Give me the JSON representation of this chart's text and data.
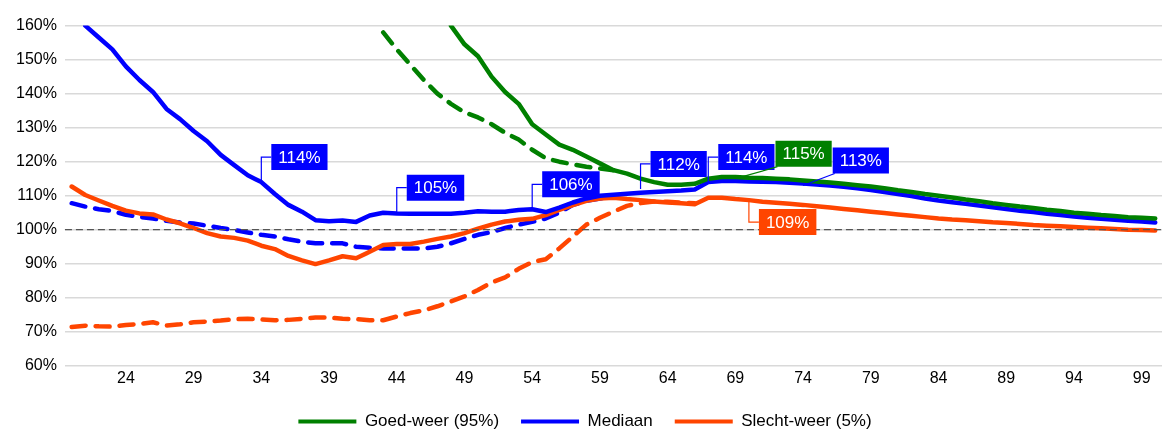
{
  "chart_data": {
    "type": "line",
    "x": [
      20,
      21,
      22,
      23,
      24,
      25,
      26,
      27,
      28,
      29,
      30,
      31,
      32,
      33,
      34,
      35,
      36,
      37,
      38,
      39,
      40,
      41,
      42,
      43,
      44,
      45,
      46,
      47,
      48,
      49,
      50,
      51,
      52,
      53,
      54,
      55,
      56,
      57,
      58,
      59,
      60,
      61,
      62,
      63,
      64,
      65,
      66,
      67,
      68,
      69,
      70,
      71,
      72,
      73,
      74,
      75,
      76,
      77,
      78,
      79,
      80,
      81,
      82,
      83,
      84,
      85,
      86,
      87,
      88,
      89,
      90,
      91,
      92,
      93,
      94,
      95,
      96,
      97,
      98,
      99,
      100
    ],
    "series": [
      {
        "name": "Goed-weer (95%)",
        "color": "#008000",
        "line_style": "solid",
        "values": [
          null,
          null,
          null,
          null,
          null,
          null,
          null,
          null,
          null,
          null,
          null,
          null,
          null,
          null,
          null,
          null,
          null,
          null,
          null,
          null,
          null,
          null,
          null,
          null,
          null,
          null,
          null,
          null,
          160,
          154.5,
          151,
          145,
          140.5,
          137,
          131,
          128,
          125,
          123.5,
          121.5,
          119.5,
          117.5,
          116.5,
          115,
          114,
          113.2,
          113.2,
          113.5,
          115,
          115.5,
          115.5,
          115.3,
          115.2,
          115,
          114.8,
          114.5,
          114.2,
          113.9,
          113.5,
          113.1,
          112.7,
          112.2,
          111.6,
          111.1,
          110.5,
          110,
          109.5,
          108.9,
          108.4,
          107.8,
          107.3,
          106.8,
          106.4,
          105.9,
          105.5,
          105,
          104.7,
          104.3,
          104,
          103.7,
          103.5,
          103.3
        ]
      },
      {
        "name": "Mediaan",
        "color": "#0000ff",
        "line_style": "solid",
        "values": [
          null,
          160,
          156.5,
          153,
          148,
          144,
          140.5,
          135.5,
          132.5,
          129,
          126,
          122,
          119,
          116,
          114,
          110.5,
          107.3,
          105.3,
          102.8,
          102.5,
          102.7,
          102.3,
          104.2,
          105,
          104.8,
          104.7,
          104.7,
          104.7,
          104.7,
          105,
          105.4,
          105.3,
          105.3,
          105.8,
          106,
          105.2,
          106.5,
          108,
          109.2,
          110,
          110.3,
          110.6,
          110.9,
          111.1,
          111.3,
          111.5,
          111.8,
          114,
          114.3,
          114.3,
          114.2,
          114.1,
          114,
          113.8,
          113.6,
          113.3,
          113,
          112.6,
          112.2,
          111.7,
          111.1,
          110.5,
          109.9,
          109.2,
          108.6,
          108.1,
          107.6,
          107.1,
          106.6,
          106.1,
          105.6,
          105.2,
          104.7,
          104.3,
          103.9,
          103.5,
          103.2,
          102.9,
          102.6,
          102.4,
          102.1
        ]
      },
      {
        "name": "Slecht-weer (5%)",
        "color": "#ff4500",
        "line_style": "solid",
        "values": [
          112.7,
          110.2,
          108.6,
          107,
          105.6,
          104.8,
          104.5,
          103,
          101.9,
          100.5,
          99,
          98,
          97.6,
          96.8,
          95.3,
          94.3,
          92.3,
          91,
          89.9,
          91,
          92.2,
          91.6,
          93.5,
          95.5,
          95.8,
          95.8,
          96.5,
          97.3,
          98,
          99,
          100.3,
          101.5,
          102.4,
          102.9,
          103.2,
          104.3,
          105.8,
          107.2,
          108.5,
          109.2,
          109.4,
          109,
          108.7,
          108.3,
          108,
          107.8,
          107.5,
          109.4,
          109.4,
          109,
          108.7,
          108.2,
          107.9,
          107.6,
          107.3,
          106.9,
          106.5,
          106.1,
          105.7,
          105.3,
          104.9,
          104.5,
          104.1,
          103.7,
          103.3,
          103,
          102.8,
          102.5,
          102.2,
          102,
          101.7,
          101.4,
          101.2,
          101,
          100.8,
          100.6,
          100.4,
          100.2,
          100,
          99.9,
          99.8
        ]
      },
      {
        "color": "#008000",
        "line_style": "dashed",
        "values": [
          null,
          null,
          null,
          null,
          null,
          null,
          null,
          null,
          null,
          null,
          null,
          null,
          null,
          null,
          null,
          null,
          null,
          null,
          null,
          null,
          null,
          null,
          null,
          158,
          153,
          148.5,
          144,
          140,
          137,
          134.5,
          133,
          131,
          128.5,
          126.5,
          123.5,
          121,
          120,
          119.2,
          118.5,
          118,
          117.5,
          null,
          null,
          null,
          null,
          null,
          null,
          null,
          null,
          null,
          null,
          null,
          null,
          null,
          null,
          null,
          null,
          null,
          null,
          null,
          null,
          null,
          null,
          null,
          null,
          null,
          null,
          null,
          null,
          null,
          null,
          null,
          null,
          null,
          null,
          null,
          null,
          null,
          null,
          null,
          null
        ]
      },
      {
        "color": "#0000ff",
        "line_style": "dashed",
        "values": [
          107.8,
          106.8,
          106,
          105.5,
          104.4,
          103.8,
          103.3,
          102.6,
          102.1,
          101.8,
          101.2,
          100.5,
          99.9,
          99.2,
          98.5,
          98,
          97.2,
          96.5,
          96,
          96,
          96,
          95,
          94.7,
          94.5,
          94.5,
          94.5,
          94.5,
          95,
          96,
          97.3,
          98.5,
          99.3,
          100.5,
          101.5,
          102.3,
          103.3,
          105,
          107.3,
          108.5,
          109.2,
          109.4,
          null,
          null,
          null,
          null,
          null,
          null,
          null,
          null,
          null,
          null,
          null,
          null,
          null,
          null,
          null,
          null,
          null,
          null,
          null,
          null,
          null,
          null,
          null,
          null,
          null,
          null,
          null,
          null,
          null,
          null,
          null,
          null,
          null,
          null,
          null,
          null,
          null,
          null,
          null,
          null
        ]
      },
      {
        "color": "#ff4500",
        "line_style": "dashed",
        "values": [
          71.4,
          71.8,
          71.6,
          71.5,
          72,
          72.3,
          72.8,
          71.8,
          72.2,
          72.8,
          73,
          73.3,
          73.7,
          73.8,
          73.6,
          73.4,
          73.5,
          73.8,
          74.2,
          74.2,
          73.8,
          73.7,
          73.4,
          73.4,
          74.5,
          75.5,
          76.3,
          77.5,
          78.9,
          80.4,
          82.3,
          84.5,
          86,
          88.5,
          90.5,
          91.3,
          94.5,
          98,
          101.5,
          103.5,
          105.3,
          107,
          107.8,
          108.3,
          108.2,
          108,
          107.8,
          null,
          null,
          null,
          null,
          null,
          null,
          null,
          null,
          null,
          null,
          null,
          null,
          null,
          null,
          null,
          null,
          null,
          null,
          null,
          null,
          null,
          null,
          null,
          null,
          null,
          null,
          null,
          null,
          null,
          null,
          null,
          null,
          null,
          null
        ]
      }
    ],
    "xlim": [
      19.5,
      100.5
    ],
    "xticks": [
      24,
      29,
      34,
      39,
      44,
      49,
      54,
      59,
      64,
      69,
      74,
      79,
      84,
      89,
      94,
      99
    ],
    "ylim": [
      60,
      160
    ],
    "yticks": [
      {
        "value": 60,
        "label": "60%"
      },
      {
        "value": 70,
        "label": "70%"
      },
      {
        "value": 80,
        "label": "80%"
      },
      {
        "value": 90,
        "label": "90%"
      },
      {
        "value": 100,
        "label": "100%"
      },
      {
        "value": 110,
        "label": "110%"
      },
      {
        "value": 120,
        "label": "120%"
      },
      {
        "value": 130,
        "label": "130%"
      },
      {
        "value": 140,
        "label": "140%"
      },
      {
        "value": 150,
        "label": "150%"
      },
      {
        "value": 160,
        "label": "160%"
      }
    ],
    "grid": "y",
    "legend": "bottom",
    "marker": "none",
    "ref_lines": [
      {
        "axis": "y",
        "value": 100,
        "color": "#555555",
        "line_style": "dashed"
      }
    ],
    "annotations": [
      {
        "text": "114%",
        "x": 34,
        "y": 114
      },
      {
        "text": "105%",
        "x": 44,
        "y": 105
      },
      {
        "text": "106%",
        "x": 54,
        "y": 106
      },
      {
        "text": "112%",
        "x": 62,
        "y": 112
      },
      {
        "text": "114%",
        "x": 67,
        "y": 114
      },
      {
        "text": "115%",
        "x": 69,
        "y": 115
      },
      {
        "text": "113%",
        "x": 74,
        "y": 113
      },
      {
        "text": "109%",
        "x": 70,
        "y": 109
      }
    ]
  }
}
